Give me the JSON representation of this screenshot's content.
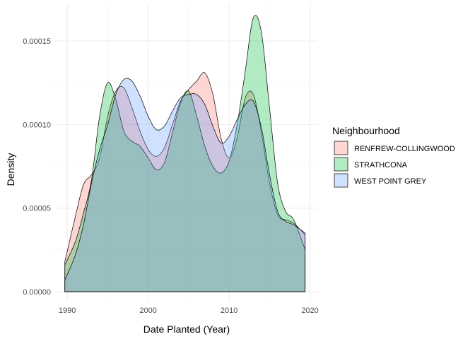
{
  "chart_data": {
    "type": "area",
    "title": "",
    "xlabel": "Date Planted (Year)",
    "ylabel": "Density",
    "xlim": [
      1988.5,
      2021
    ],
    "ylim": [
      -5.5e-06,
      0.000172
    ],
    "x_ticks": [
      1990,
      2000,
      2010,
      2020
    ],
    "x_tick_labels": [
      "1990",
      "2000",
      "2010",
      "2020"
    ],
    "y_ticks": [
      0,
      5e-05,
      0.0001,
      0.00015
    ],
    "y_tick_labels": [
      "0.00000",
      "0.00005",
      "0.00010",
      "0.00015"
    ],
    "grid": true,
    "legend": {
      "title": "Neighbourhood",
      "position": "right"
    },
    "series": [
      {
        "name": "RENFREW-COLLINGWOOD",
        "color": "#F8766D",
        "points": [
          [
            1989.7,
            1.8e-05
          ],
          [
            1991.0,
            4.5e-05
          ],
          [
            1992.0,
            6.4e-05
          ],
          [
            1993.0,
            7e-05
          ],
          [
            1994.0,
            8e-05
          ],
          [
            1995.0,
            0.000105
          ],
          [
            1996.0,
            0.00012
          ],
          [
            1997.0,
            0.000122
          ],
          [
            1998.0,
            0.00011
          ],
          [
            1999.0,
            9.6e-05
          ],
          [
            2000.0,
            8.5e-05
          ],
          [
            2001.0,
            8.1e-05
          ],
          [
            2002.0,
            8.6e-05
          ],
          [
            2003.0,
            0.0001
          ],
          [
            2004.0,
            0.000114
          ],
          [
            2005.0,
            0.000121
          ],
          [
            2006.0,
            0.000126
          ],
          [
            2007.0,
            0.000131
          ],
          [
            2008.0,
            0.000118
          ],
          [
            2009.0,
            9.2e-05
          ],
          [
            2010.0,
            8e-05
          ],
          [
            2011.0,
            9.2e-05
          ],
          [
            2012.0,
            0.000116
          ],
          [
            2013.0,
            0.000118
          ],
          [
            2014.0,
            9.5e-05
          ],
          [
            2015.0,
            6.5e-05
          ],
          [
            2016.0,
            4.6e-05
          ],
          [
            2017.0,
            4.3e-05
          ],
          [
            2018.0,
            4.1e-05
          ],
          [
            2019.4,
            3.4e-05
          ]
        ]
      },
      {
        "name": "STRATHCONA",
        "color": "#00BA38",
        "points": [
          [
            1989.7,
            1.6e-05
          ],
          [
            1991.0,
            3e-05
          ],
          [
            1992.0,
            4.7e-05
          ],
          [
            1993.0,
            6.7e-05
          ],
          [
            1994.0,
            0.000105
          ],
          [
            1995.0,
            0.000125
          ],
          [
            1996.0,
            0.000115
          ],
          [
            1997.0,
            9.6e-05
          ],
          [
            1998.0,
            9e-05
          ],
          [
            1999.0,
            8.7e-05
          ],
          [
            2000.0,
            8e-05
          ],
          [
            2001.0,
            7.3e-05
          ],
          [
            2002.0,
            7.7e-05
          ],
          [
            2003.0,
            9.5e-05
          ],
          [
            2004.0,
            0.000113
          ],
          [
            2005.0,
            0.00012
          ],
          [
            2006.0,
            0.000105
          ],
          [
            2007.0,
            8.7e-05
          ],
          [
            2008.0,
            7.5e-05
          ],
          [
            2009.0,
            7.1e-05
          ],
          [
            2010.0,
            7.8e-05
          ],
          [
            2011.0,
            0.0001
          ],
          [
            2012.0,
            0.000132
          ],
          [
            2013.0,
            0.000164
          ],
          [
            2014.0,
            0.000155
          ],
          [
            2015.0,
            0.00011
          ],
          [
            2016.0,
            6.5e-05
          ],
          [
            2017.0,
            4.8e-05
          ],
          [
            2018.0,
            4.3e-05
          ],
          [
            2019.4,
            2.5e-05
          ]
        ]
      },
      {
        "name": "WEST POINT GREY",
        "color": "#619CFF",
        "points": [
          [
            1989.7,
            7e-06
          ],
          [
            1991.0,
            2.2e-05
          ],
          [
            1992.0,
            4e-05
          ],
          [
            1993.0,
            6.5e-05
          ],
          [
            1994.0,
            8.5e-05
          ],
          [
            1995.0,
            0.0001
          ],
          [
            1996.0,
            0.000118
          ],
          [
            1997.0,
            0.000127
          ],
          [
            1998.0,
            0.000126
          ],
          [
            1999.0,
            0.000117
          ],
          [
            2000.0,
            0.000105
          ],
          [
            2001.0,
            9.7e-05
          ],
          [
            2002.0,
            9.9e-05
          ],
          [
            2003.0,
            0.000108
          ],
          [
            2004.0,
            0.000116
          ],
          [
            2005.0,
            0.000118
          ],
          [
            2006.0,
            0.000118
          ],
          [
            2007.0,
            0.000112
          ],
          [
            2008.0,
            9.9e-05
          ],
          [
            2009.0,
            8.9e-05
          ],
          [
            2010.0,
            9.3e-05
          ],
          [
            2011.0,
            0.000103
          ],
          [
            2012.0,
            0.000112
          ],
          [
            2013.0,
            0.000114
          ],
          [
            2014.0,
            9.8e-05
          ],
          [
            2015.0,
            7e-05
          ],
          [
            2016.0,
            4.8e-05
          ],
          [
            2017.0,
            4.2e-05
          ],
          [
            2018.0,
            4e-05
          ],
          [
            2019.4,
            3.5e-05
          ]
        ]
      }
    ]
  }
}
